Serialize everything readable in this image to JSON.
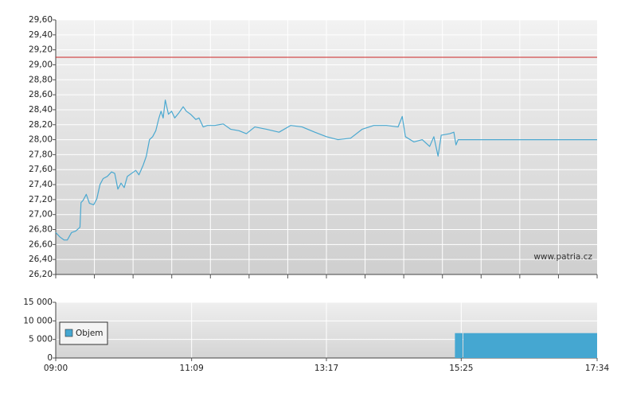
{
  "chart_data": [
    {
      "type": "line",
      "watermark": "www.patria.cz",
      "xlim": [
        540,
        1054
      ],
      "ylim": [
        26.2,
        29.6
      ],
      "yticks": [
        {
          "value": 26.2,
          "label": "26,20"
        },
        {
          "value": 26.4,
          "label": "26,40"
        },
        {
          "value": 26.6,
          "label": "26,60"
        },
        {
          "value": 26.8,
          "label": "26,80"
        },
        {
          "value": 27.0,
          "label": "27,00"
        },
        {
          "value": 27.2,
          "label": "27,20"
        },
        {
          "value": 27.4,
          "label": "27,40"
        },
        {
          "value": 27.6,
          "label": "27,60"
        },
        {
          "value": 27.8,
          "label": "27,80"
        },
        {
          "value": 28.0,
          "label": "28,00"
        },
        {
          "value": 28.2,
          "label": "28,20"
        },
        {
          "value": 28.4,
          "label": "28,40"
        },
        {
          "value": 28.6,
          "label": "28,60"
        },
        {
          "value": 28.8,
          "label": "28,80"
        },
        {
          "value": 29.0,
          "label": "29,00"
        },
        {
          "value": 29.2,
          "label": "29,20"
        },
        {
          "value": 29.4,
          "label": "29,40"
        },
        {
          "value": 29.6,
          "label": "29,60"
        }
      ],
      "grid": true,
      "color": "#4aa8d0",
      "reference_line": {
        "value": 29.1,
        "color": "#cc2222"
      },
      "x": [
        540,
        544,
        548,
        551,
        555,
        559,
        563,
        564,
        566,
        569,
        572,
        576,
        579,
        582,
        585,
        589,
        593,
        596,
        599,
        602,
        605,
        608,
        612,
        616,
        619,
        623,
        626,
        629,
        632,
        635,
        638,
        640,
        642,
        644,
        647,
        650,
        653,
        657,
        661,
        664,
        668,
        673,
        676,
        680,
        684,
        691,
        699,
        706,
        714,
        721,
        729,
        740,
        752,
        763,
        774,
        786,
        797,
        808,
        820,
        831,
        842,
        854,
        865,
        869,
        872,
        880,
        888,
        895,
        899,
        903,
        906,
        914,
        918,
        920,
        922,
        1054
      ],
      "values": [
        26.76,
        26.7,
        26.66,
        26.66,
        26.76,
        26.78,
        26.83,
        27.16,
        27.19,
        27.27,
        27.15,
        27.13,
        27.21,
        27.4,
        27.48,
        27.51,
        27.57,
        27.55,
        27.34,
        27.42,
        27.36,
        27.51,
        27.55,
        27.59,
        27.53,
        27.66,
        27.78,
        28.0,
        28.04,
        28.12,
        28.29,
        28.38,
        28.29,
        28.53,
        28.34,
        28.38,
        28.29,
        28.36,
        28.44,
        28.38,
        28.34,
        28.27,
        28.29,
        28.17,
        28.19,
        28.19,
        28.21,
        28.14,
        28.12,
        28.08,
        28.17,
        28.14,
        28.1,
        28.19,
        28.17,
        28.1,
        28.04,
        28.0,
        28.02,
        28.14,
        28.19,
        28.19,
        28.17,
        28.31,
        28.04,
        27.97,
        28.0,
        27.91,
        28.04,
        27.78,
        28.06,
        28.08,
        28.1,
        27.93,
        28.0,
        28.0
      ]
    },
    {
      "type": "bar",
      "xlim": [
        540,
        1054
      ],
      "xticks": [
        {
          "value": 540,
          "label": "09:00"
        },
        {
          "value": 669,
          "label": "11:09"
        },
        {
          "value": 797,
          "label": "13:17"
        },
        {
          "value": 925,
          "label": "15:25"
        },
        {
          "value": 1054,
          "label": "17:34"
        }
      ],
      "ylim": [
        0,
        15000
      ],
      "yticks": [
        0,
        {
          "value": 5000,
          "label": "5 000"
        },
        {
          "value": 10000,
          "label": "10 000"
        },
        {
          "value": 15000,
          "label": "15 000"
        }
      ],
      "grid": true,
      "x": [
        919,
        927
      ],
      "series": [
        {
          "name": "Objem",
          "color": "#45a7d1",
          "values": [
            6700,
            6700
          ]
        }
      ]
    }
  ]
}
